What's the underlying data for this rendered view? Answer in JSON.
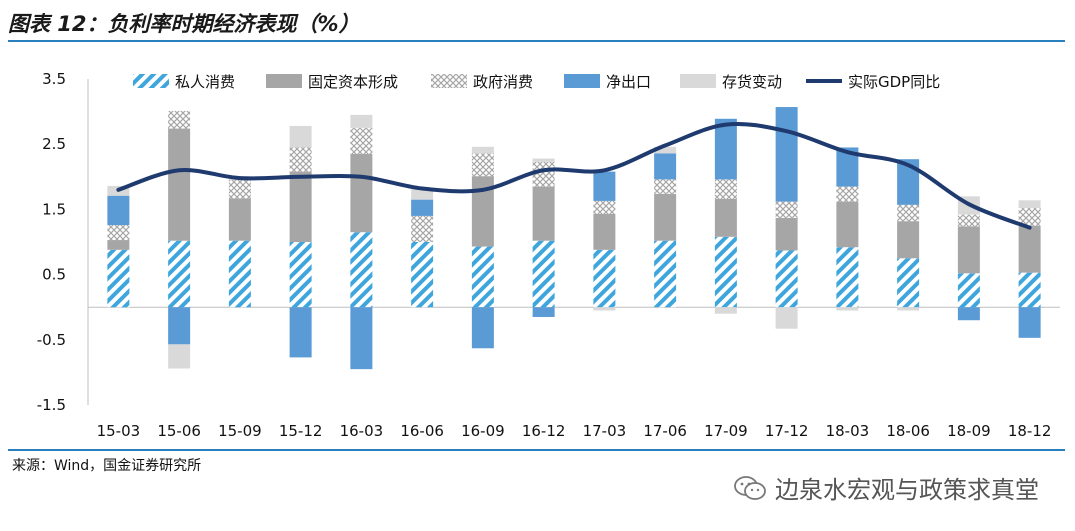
{
  "title": "图表 12：负利率时期经济表现（%）",
  "source": "来源：Wind，国金证券研究所",
  "watermark": "边泉水宏观与政策求真堂",
  "colors": {
    "private": "#3fa6dd",
    "fixed": "#a6a6a6",
    "gov": "#bfbfbf",
    "netexport": "#5b9bd5",
    "inventory": "#d9d9d9",
    "gdp": "#1f3a6e",
    "rule": "#2a7fbf"
  },
  "chart_data": {
    "type": "bar",
    "stacked": true,
    "categories": [
      "15-03",
      "15-06",
      "15-09",
      "15-12",
      "16-03",
      "16-06",
      "16-09",
      "16-12",
      "17-03",
      "17-06",
      "17-09",
      "17-12",
      "18-03",
      "18-06",
      "18-09",
      "18-12"
    ],
    "ylim": [
      -1.5,
      3.5
    ],
    "yticks": [
      "3.5",
      "2.5",
      "1.5",
      "0.5",
      "-0.5",
      "-1.5"
    ],
    "legend_position": "top",
    "series": [
      {
        "name": "私人消费",
        "kind": "bar",
        "style": "hatch",
        "values": [
          0.88,
          1.02,
          1.02,
          1.0,
          1.15,
          1.0,
          0.93,
          1.02,
          0.88,
          1.02,
          1.08,
          0.87,
          0.92,
          0.75,
          0.52,
          0.53
        ]
      },
      {
        "name": "固定资本形成",
        "kind": "bar",
        "style": "solid",
        "values": [
          0.15,
          1.72,
          0.65,
          1.08,
          1.2,
          0.0,
          1.08,
          0.83,
          0.55,
          0.72,
          0.58,
          0.5,
          0.7,
          0.57,
          0.72,
          0.72
        ]
      },
      {
        "name": "政府消费",
        "kind": "bar",
        "style": "dots",
        "values": [
          0.23,
          0.27,
          0.28,
          0.37,
          0.4,
          0.4,
          0.35,
          0.38,
          0.2,
          0.22,
          0.3,
          0.25,
          0.23,
          0.25,
          0.18,
          0.27
        ]
      },
      {
        "name": "净出口",
        "kind": "bar",
        "style": "solid",
        "values": [
          0.45,
          -0.57,
          0.0,
          -0.77,
          -0.95,
          0.25,
          -0.63,
          -0.15,
          0.45,
          0.4,
          0.93,
          1.45,
          0.6,
          0.7,
          -0.2,
          -0.47
        ]
      },
      {
        "name": "存货变动",
        "kind": "bar",
        "style": "solid",
        "values": [
          0.15,
          -0.37,
          0.05,
          0.33,
          0.2,
          0.18,
          0.1,
          0.05,
          -0.05,
          0.1,
          -0.1,
          -0.33,
          -0.05,
          -0.05,
          0.28,
          0.12
        ]
      },
      {
        "name": "实际GDP同比",
        "kind": "line",
        "values": [
          1.8,
          2.1,
          1.98,
          2.0,
          2.0,
          1.82,
          1.8,
          2.1,
          2.1,
          2.48,
          2.8,
          2.7,
          2.38,
          2.18,
          1.58,
          1.22
        ]
      }
    ]
  }
}
